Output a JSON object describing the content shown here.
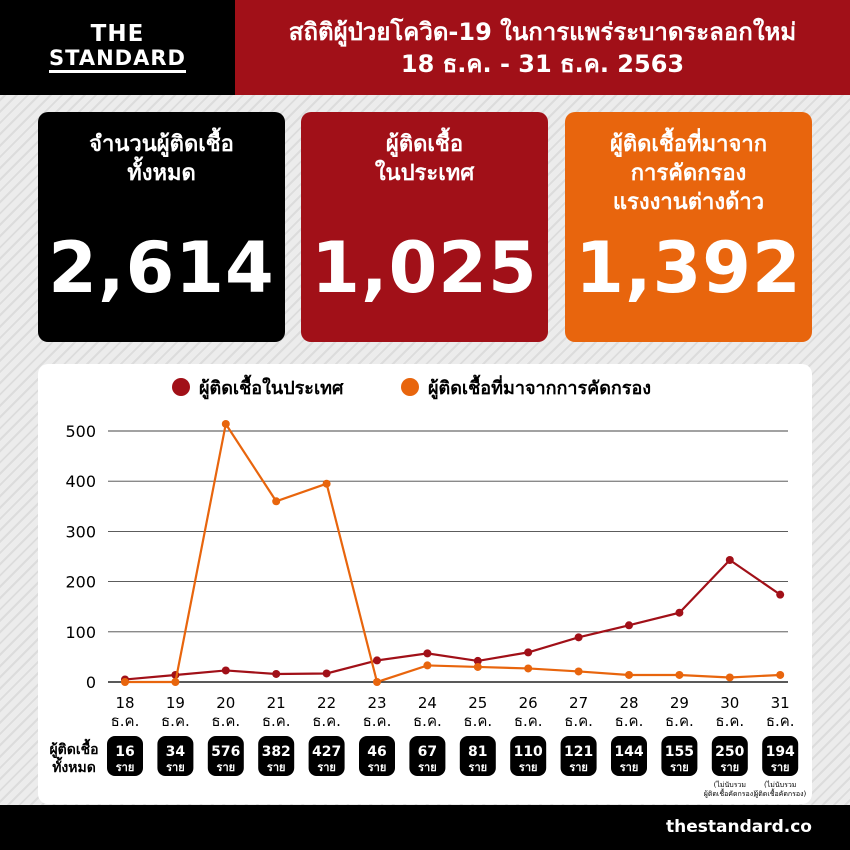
{
  "brand": {
    "line1": "THE",
    "line2": "STANDARD"
  },
  "header": {
    "title": "สถิติผู้ป่วยโควิด-19 ในการแพร่ระบาดระลอกใหม่",
    "date_range": "18 ธ.ค. - 31 ธ.ค. 2563"
  },
  "cards": {
    "total": {
      "label_line1": "จำนวนผู้ติดเชื้อ",
      "label_line2": "ทั้งหมด",
      "value": "2,614"
    },
    "domestic": {
      "label_line1": "ผู้ติดเชื้อ",
      "label_line2": "ในประเทศ",
      "value": "1,025"
    },
    "foreign": {
      "label_line1": "ผู้ติดเชื้อที่มาจาก",
      "label_line2": "การคัดกรอง",
      "label_line3": "แรงงานต่างด้าว",
      "value": "1,392"
    }
  },
  "colors": {
    "domestic": "#a11018",
    "foreign": "#e8650d",
    "black": "#000000"
  },
  "chart_data": {
    "type": "line",
    "x": [
      "18",
      "19",
      "20",
      "21",
      "22",
      "23",
      "24",
      "25",
      "26",
      "27",
      "28",
      "29",
      "30",
      "31"
    ],
    "x_unit": "ธ.ค.",
    "ylim": [
      0,
      500
    ],
    "yticks": [
      0,
      100,
      200,
      300,
      400,
      500
    ],
    "grid": true,
    "legend_position": "top",
    "series": [
      {
        "name": "ผู้ติดเชื้อในประเทศ",
        "color": "#a11018",
        "values": [
          5,
          14,
          23,
          16,
          17,
          43,
          57,
          42,
          59,
          89,
          113,
          138,
          243,
          174
        ]
      },
      {
        "name": "ผู้ติดเชื้อที่มาจากการคัดกรอง",
        "color": "#e8650d",
        "values": [
          0,
          0,
          514,
          360,
          395,
          0,
          33,
          30,
          27,
          21,
          14,
          14,
          9,
          14
        ]
      }
    ],
    "totals_label_line1": "ผู้ติดเชื้อ",
    "totals_label_line2": "ทั้งหมด",
    "totals": [
      16,
      34,
      576,
      382,
      427,
      46,
      67,
      81,
      110,
      121,
      144,
      155,
      250,
      194
    ],
    "totals_unit": "ราย",
    "notes": [
      {
        "index": 12,
        "line1": "(ไม่นับรวม",
        "line2": "ผู้ติดเชื้อคัดกรอง)"
      },
      {
        "index": 13,
        "line1": "(ไม่นับรวม",
        "line2": "ผู้ติดเชื้อคัดกรอง)"
      }
    ]
  },
  "footer": {
    "site": "thestandard.co"
  }
}
